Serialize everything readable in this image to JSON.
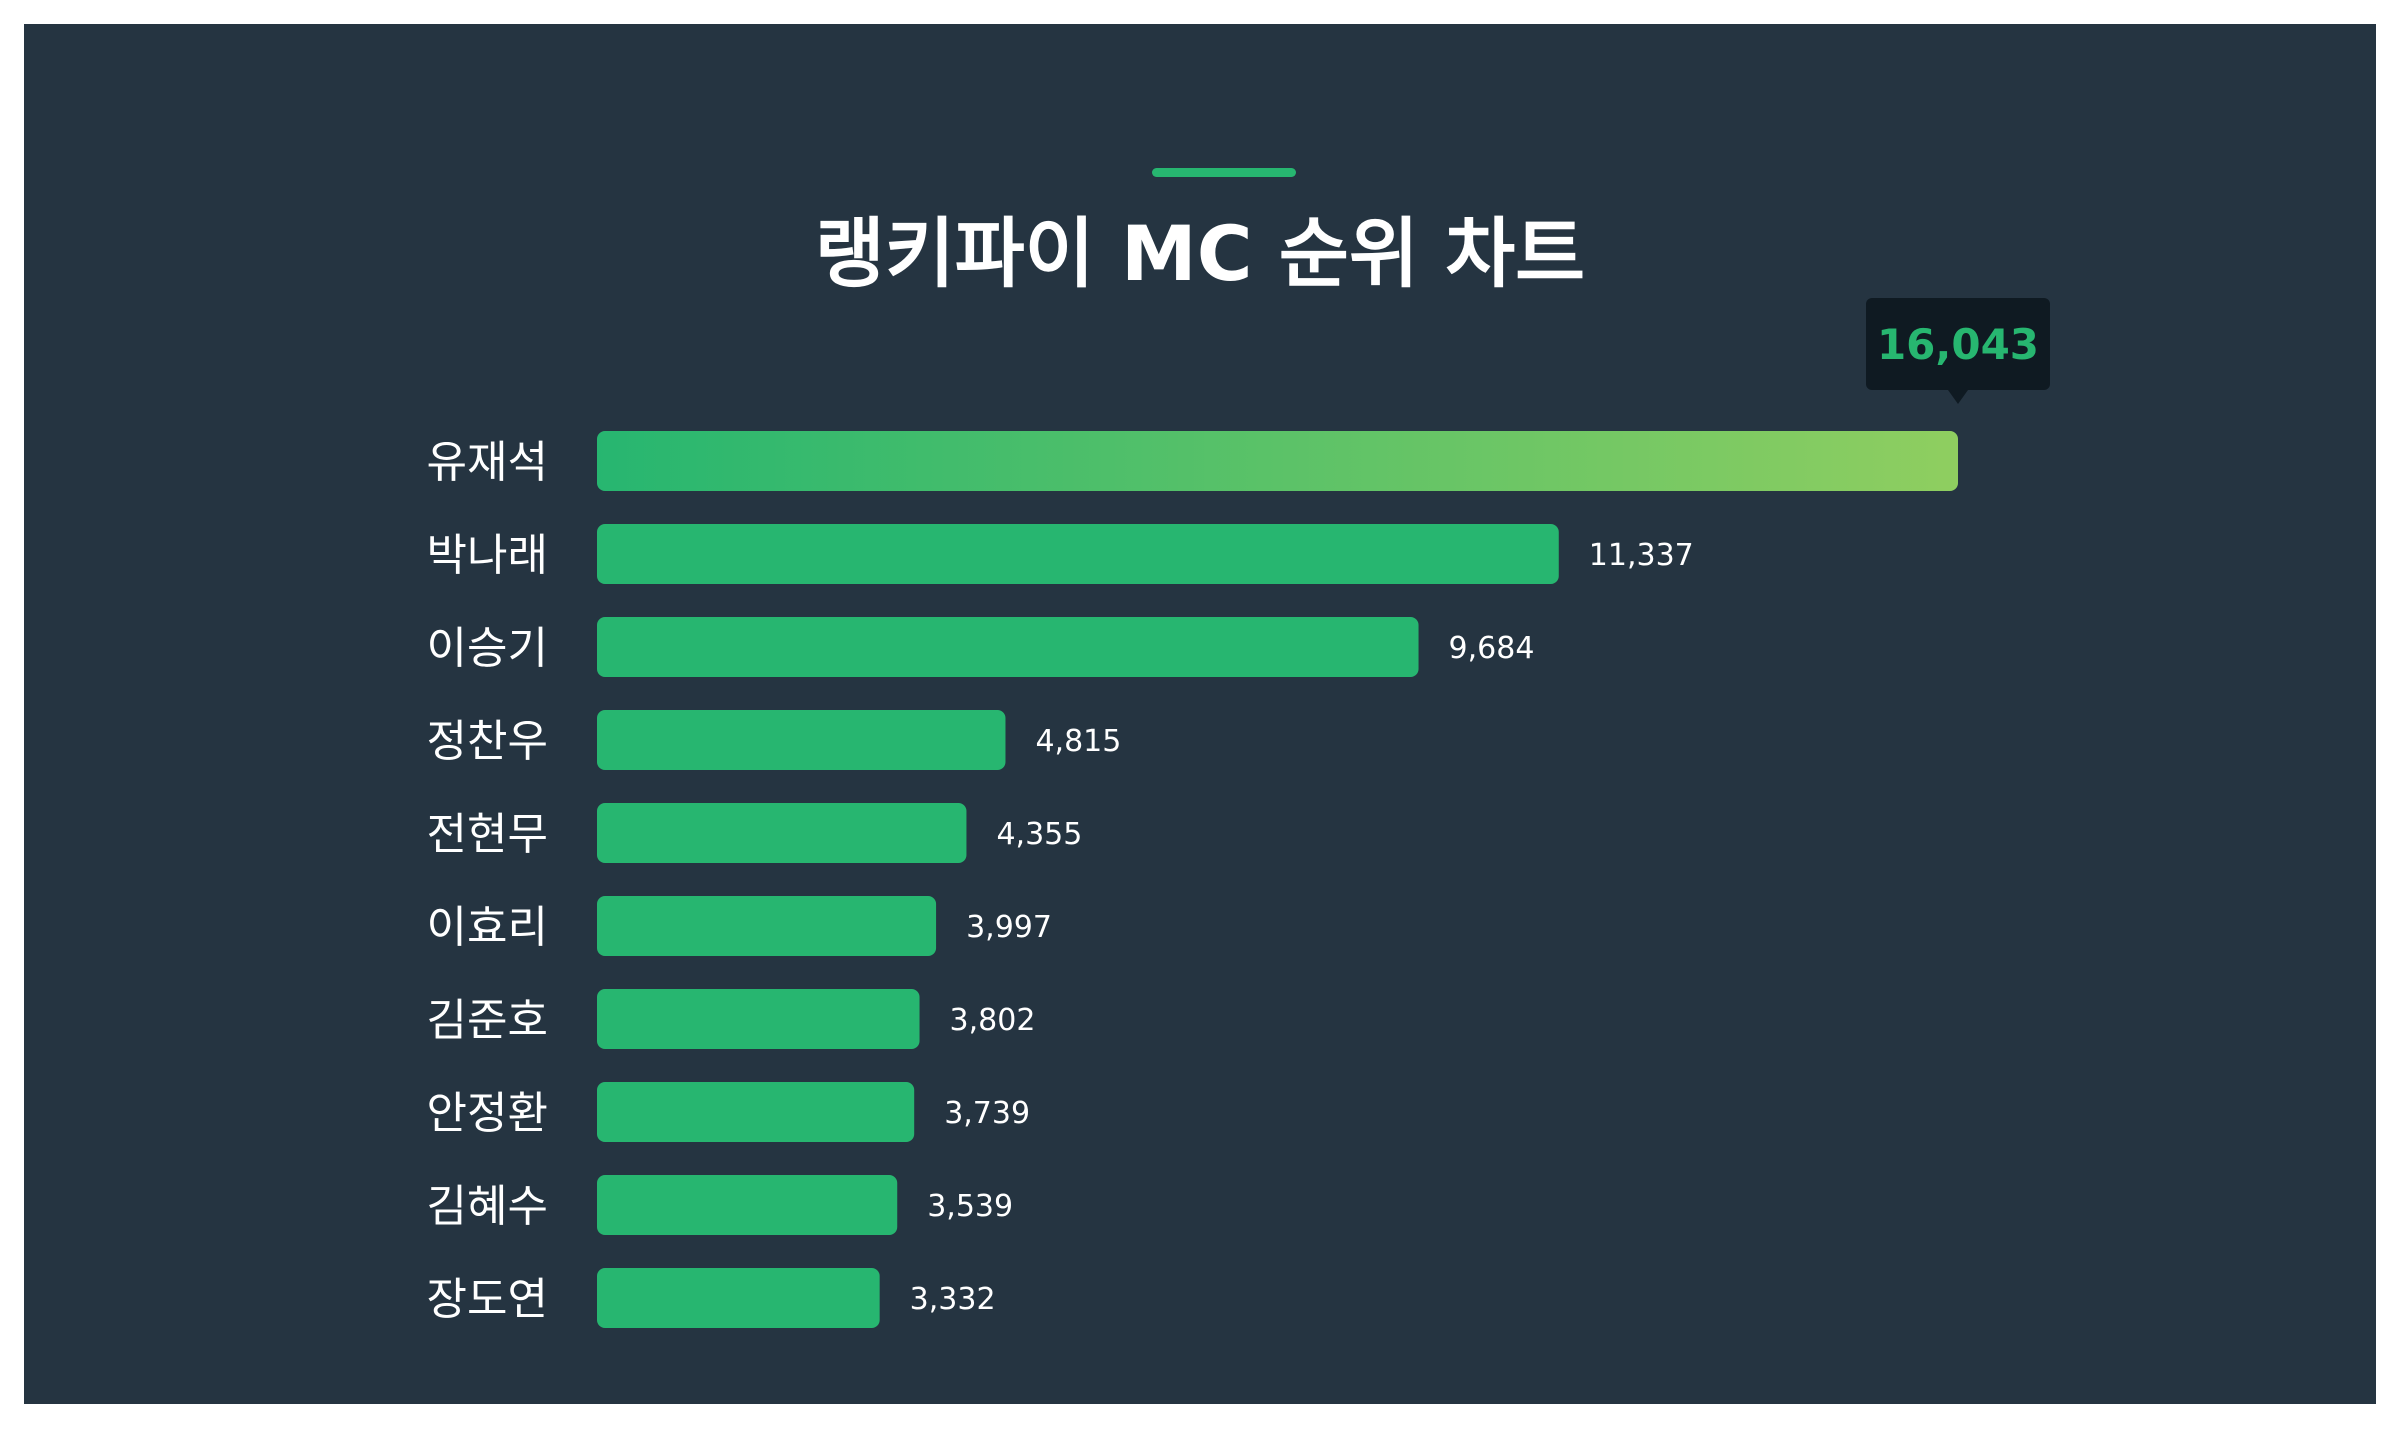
{
  "title": "랭키파이 MC 순위 차트",
  "colors": {
    "background": "#253441",
    "bar": "#27b670",
    "highlight_start": "#27b670",
    "highlight_end": "#8fce60",
    "tooltip_bg": "#0f1a22",
    "tooltip_text": "#27b670",
    "label_text": "#ffffff"
  },
  "chart_data": {
    "type": "bar",
    "orientation": "horizontal",
    "categories": [
      "유재석",
      "박나래",
      "이승기",
      "정찬우",
      "전현무",
      "이효리",
      "김준호",
      "안정환",
      "김혜수",
      "장도연"
    ],
    "values": [
      16043,
      11337,
      9684,
      4815,
      4355,
      3997,
      3802,
      3739,
      3539,
      3332
    ],
    "value_labels": [
      "16,043",
      "11,337",
      "9,684",
      "4,815",
      "4,355",
      "3,997",
      "3,802",
      "3,739",
      "3,539",
      "3,332"
    ],
    "highlighted_index": 0,
    "xlim": [
      0,
      16043
    ],
    "grid": false
  }
}
